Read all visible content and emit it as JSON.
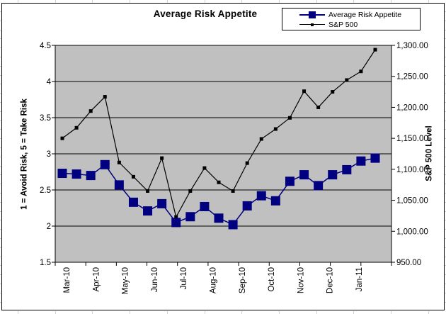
{
  "chart_data": {
    "type": "line",
    "title": "Average Risk Appetite",
    "x_tick_labels": [
      "Mar-10",
      "Apr-10",
      "May-10",
      "Jun-10",
      "Jul-10",
      "Aug-10",
      "Sep-10",
      "Oct-10",
      "Nov-10",
      "Dec-10",
      "Jan-11"
    ],
    "series": [
      {
        "name": "Average Risk Appetite",
        "axis": "left",
        "color": "#000080",
        "marker": "large-square",
        "values": [
          2.73,
          2.72,
          2.7,
          2.85,
          2.57,
          2.33,
          2.21,
          2.31,
          2.05,
          2.13,
          2.27,
          2.11,
          2.02,
          2.28,
          2.42,
          2.35,
          2.62,
          2.71,
          2.56,
          2.71,
          2.78,
          2.9,
          2.94
        ]
      },
      {
        "name": "S&P 500",
        "axis": "right",
        "color": "#000000",
        "marker": "small-square",
        "values": [
          1150,
          1167,
          1194,
          1217,
          1111,
          1088,
          1065,
          1118,
          1023,
          1065,
          1102,
          1079,
          1065,
          1110,
          1149,
          1165,
          1183,
          1226,
          1200,
          1225,
          1244,
          1258,
          1293
        ]
      }
    ],
    "left_axis": {
      "title": "1 = Avoid Risk, 5 = Take Risk",
      "min": 1.5,
      "max": 4.5,
      "step": 0.5,
      "tick_labels": [
        "1.5",
        "2",
        "2.5",
        "3",
        "3.5",
        "4",
        "4.5"
      ]
    },
    "right_axis": {
      "title": "S&P 500 Level",
      "min": 950,
      "max": 1300,
      "step": 50,
      "tick_labels": [
        "950.00",
        "1,000.00",
        "1,050.00",
        "1,100.00",
        "1,150.00",
        "1,200.00",
        "1,250.00",
        "1,300.00"
      ]
    },
    "plot_bg": "#c0c0c0",
    "grid": true,
    "legend_position": "top-right"
  }
}
